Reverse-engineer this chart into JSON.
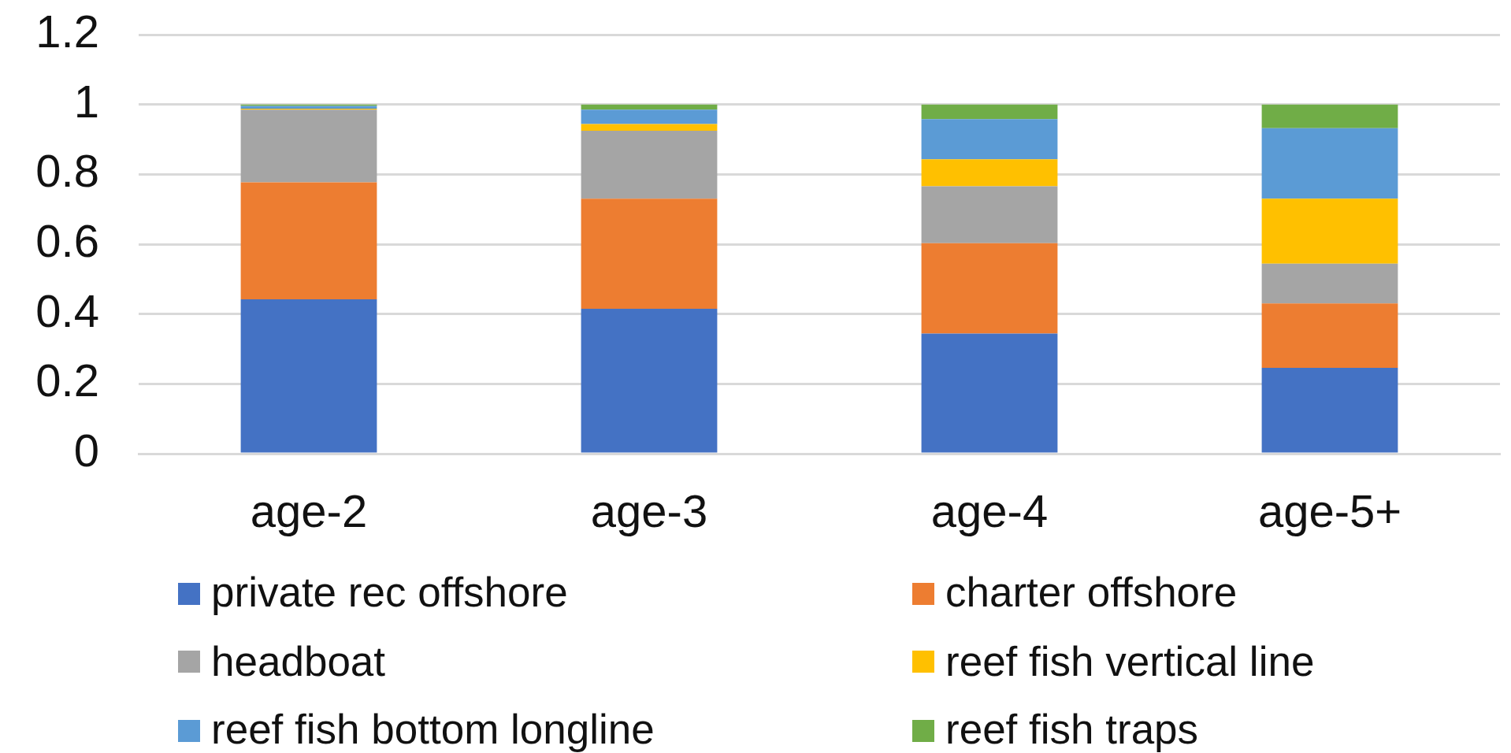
{
  "chart_data": {
    "type": "bar",
    "stacked": true,
    "categories": [
      "age-2",
      "age-3",
      "age-4",
      "age-5+"
    ],
    "series": [
      {
        "name": "private rec offshore",
        "color": "#4472c4",
        "values": [
          0.442,
          0.415,
          0.344,
          0.246
        ]
      },
      {
        "name": "charter offshore",
        "color": "#ed7d31",
        "values": [
          0.335,
          0.315,
          0.259,
          0.184
        ]
      },
      {
        "name": "headboat",
        "color": "#a5a5a5",
        "values": [
          0.208,
          0.195,
          0.163,
          0.114
        ]
      },
      {
        "name": "reef fish vertical line",
        "color": "#ffc000",
        "values": [
          0.003,
          0.019,
          0.077,
          0.186
        ]
      },
      {
        "name": "reef fish bottom longline",
        "color": "#5b9bd5",
        "values": [
          0.008,
          0.041,
          0.115,
          0.202
        ]
      },
      {
        "name": "reef fish traps",
        "color": "#70ad47",
        "values": [
          0.004,
          0.015,
          0.042,
          0.068
        ]
      }
    ],
    "ylim": [
      0,
      1.2
    ],
    "yticks": [
      0,
      0.2,
      0.4,
      0.6,
      0.8,
      1,
      1.2
    ],
    "grid": "y",
    "legend": "bottom"
  }
}
